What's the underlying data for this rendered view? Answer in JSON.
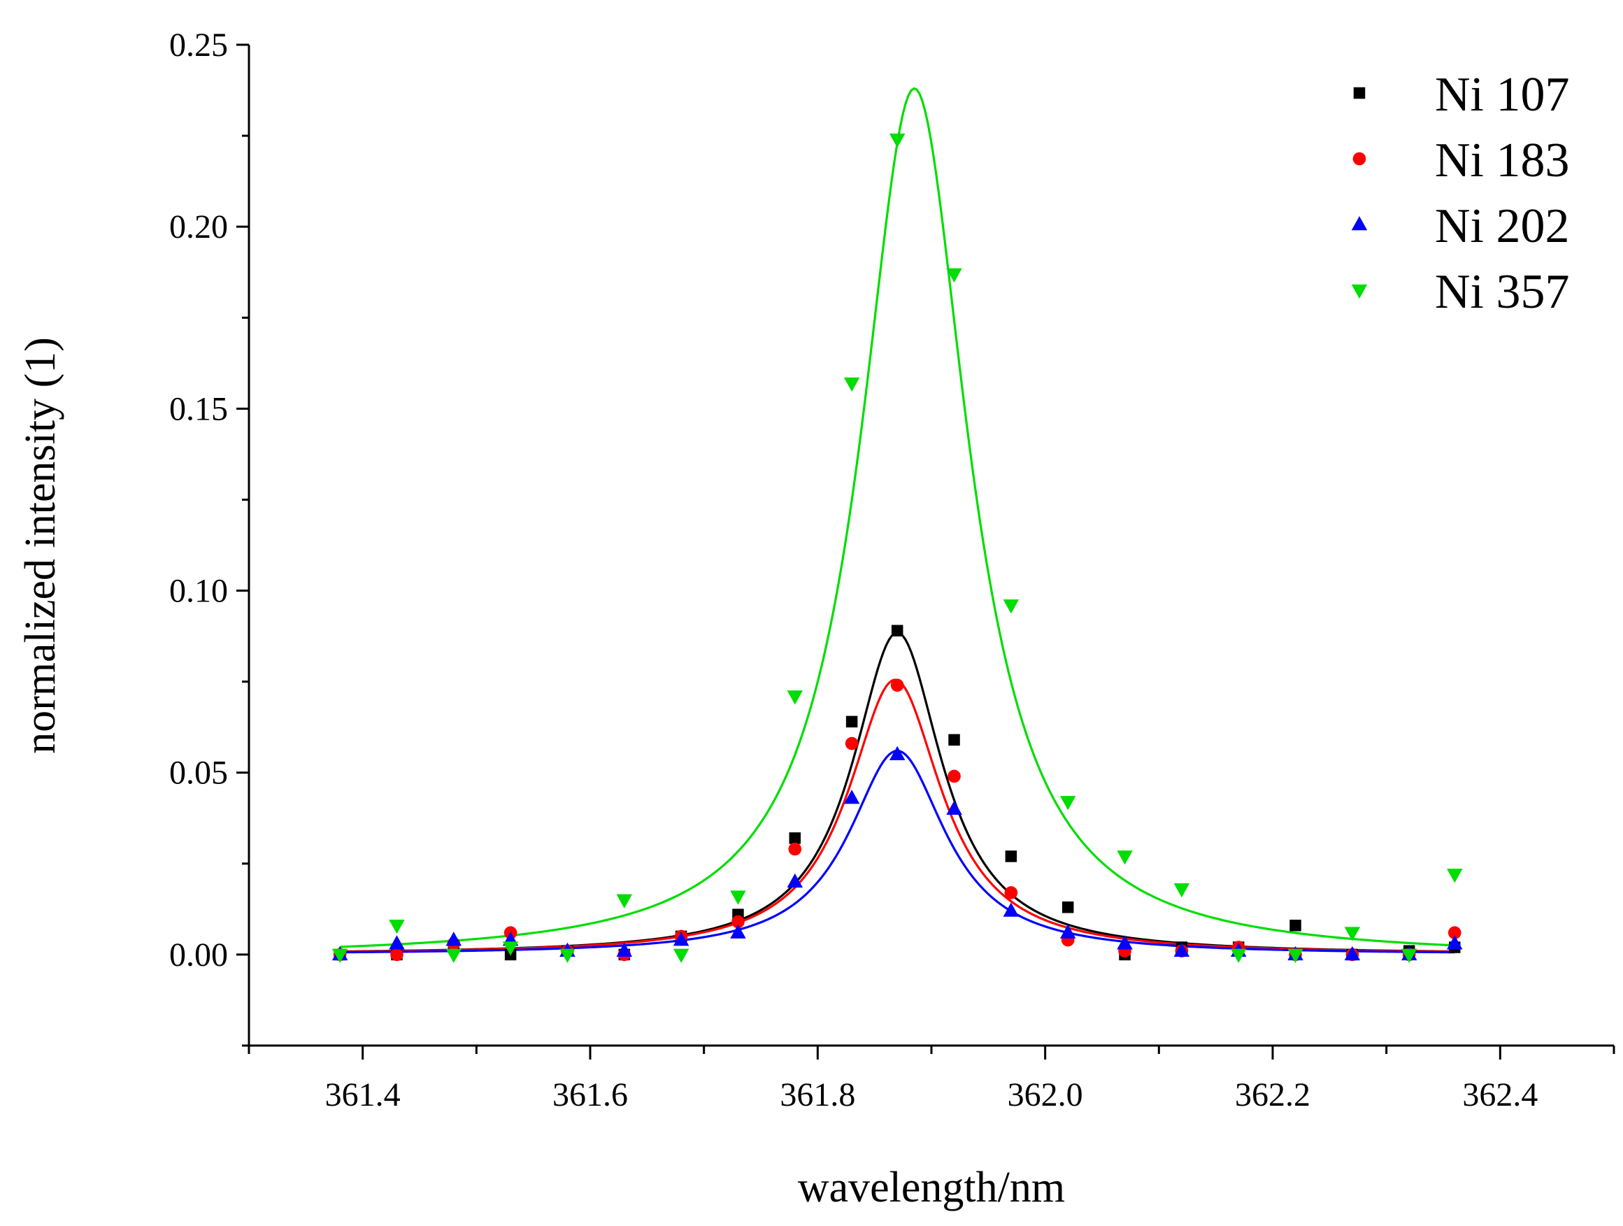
{
  "chart_data": {
    "type": "scatter",
    "title": "",
    "xlabel": "wavelength/nm",
    "ylabel": "normalized intensity (1)",
    "xlim": [
      361.3,
      362.5
    ],
    "ylim": [
      -0.025,
      0.25
    ],
    "grid": false,
    "legend_position": "top-right",
    "x_ticks": [
      361.4,
      361.6,
      361.8,
      362.0,
      362.2,
      362.4
    ],
    "x_tick_labels": [
      "361.4",
      "361.6",
      "361.8",
      "362.0",
      "362.2",
      "362.4"
    ],
    "y_ticks": [
      0.0,
      0.05,
      0.1,
      0.15,
      0.2,
      0.25
    ],
    "y_tick_labels": [
      "0.00",
      "0.05",
      "0.10",
      "0.15",
      "0.20",
      "0.25"
    ],
    "x_minor_step": 0.1,
    "y_minor_step": 0.025,
    "x": [
      361.38,
      361.43,
      361.48,
      361.53,
      361.58,
      361.63,
      361.68,
      361.73,
      361.78,
      361.83,
      361.87,
      361.92,
      361.97,
      362.02,
      362.07,
      362.12,
      362.17,
      362.22,
      362.27,
      362.32,
      362.36
    ],
    "series": [
      {
        "name": "Ni 107",
        "color": "#000000",
        "marker": "square",
        "values": [
          0.0,
          0.0,
          0.002,
          0.0,
          0.001,
          0.0,
          0.005,
          0.011,
          0.032,
          0.064,
          0.089,
          0.059,
          0.027,
          0.013,
          0.0,
          0.002,
          0.002,
          0.008,
          0.0,
          0.001,
          0.002
        ],
        "fit": {
          "center": 361.87,
          "amplitude": 0.0885,
          "hwhm": 0.048,
          "baseline": 0.0
        }
      },
      {
        "name": "Ni 183",
        "color": "#ff0000",
        "marker": "circle",
        "values": [
          0.0,
          0.0,
          0.003,
          0.006,
          0.001,
          0.0,
          0.005,
          0.009,
          0.029,
          0.058,
          0.074,
          0.049,
          0.017,
          0.004,
          0.001,
          0.001,
          0.002,
          0.0,
          0.0,
          0.0,
          0.006
        ],
        "fit": {
          "center": 361.868,
          "amplitude": 0.0755,
          "hwhm": 0.05,
          "baseline": 0.0
        }
      },
      {
        "name": "Ni 202",
        "color": "#0000ff",
        "marker": "triangle-up",
        "values": [
          0.0,
          0.003,
          0.004,
          0.004,
          0.001,
          0.001,
          0.004,
          0.006,
          0.02,
          0.043,
          0.055,
          0.04,
          0.012,
          0.006,
          0.003,
          0.001,
          0.001,
          0.0,
          0.0,
          0.0,
          0.003
        ],
        "fit": {
          "center": 361.87,
          "amplitude": 0.056,
          "hwhm": 0.052,
          "baseline": 0.0
        }
      },
      {
        "name": "Ni 357",
        "color": "#00dd00",
        "marker": "triangle-down",
        "values": [
          0.0,
          0.008,
          0.0,
          0.002,
          0.0,
          0.015,
          0.0,
          0.016,
          0.071,
          0.157,
          0.224,
          0.187,
          0.096,
          0.042,
          0.027,
          0.018,
          0.0,
          0.0,
          0.006,
          0.0,
          0.022
        ],
        "fit": {
          "center": 361.885,
          "amplitude": 0.239,
          "hwhm": 0.058,
          "baseline": -0.001
        }
      }
    ],
    "fit_range": [
      361.38,
      362.36
    ]
  }
}
